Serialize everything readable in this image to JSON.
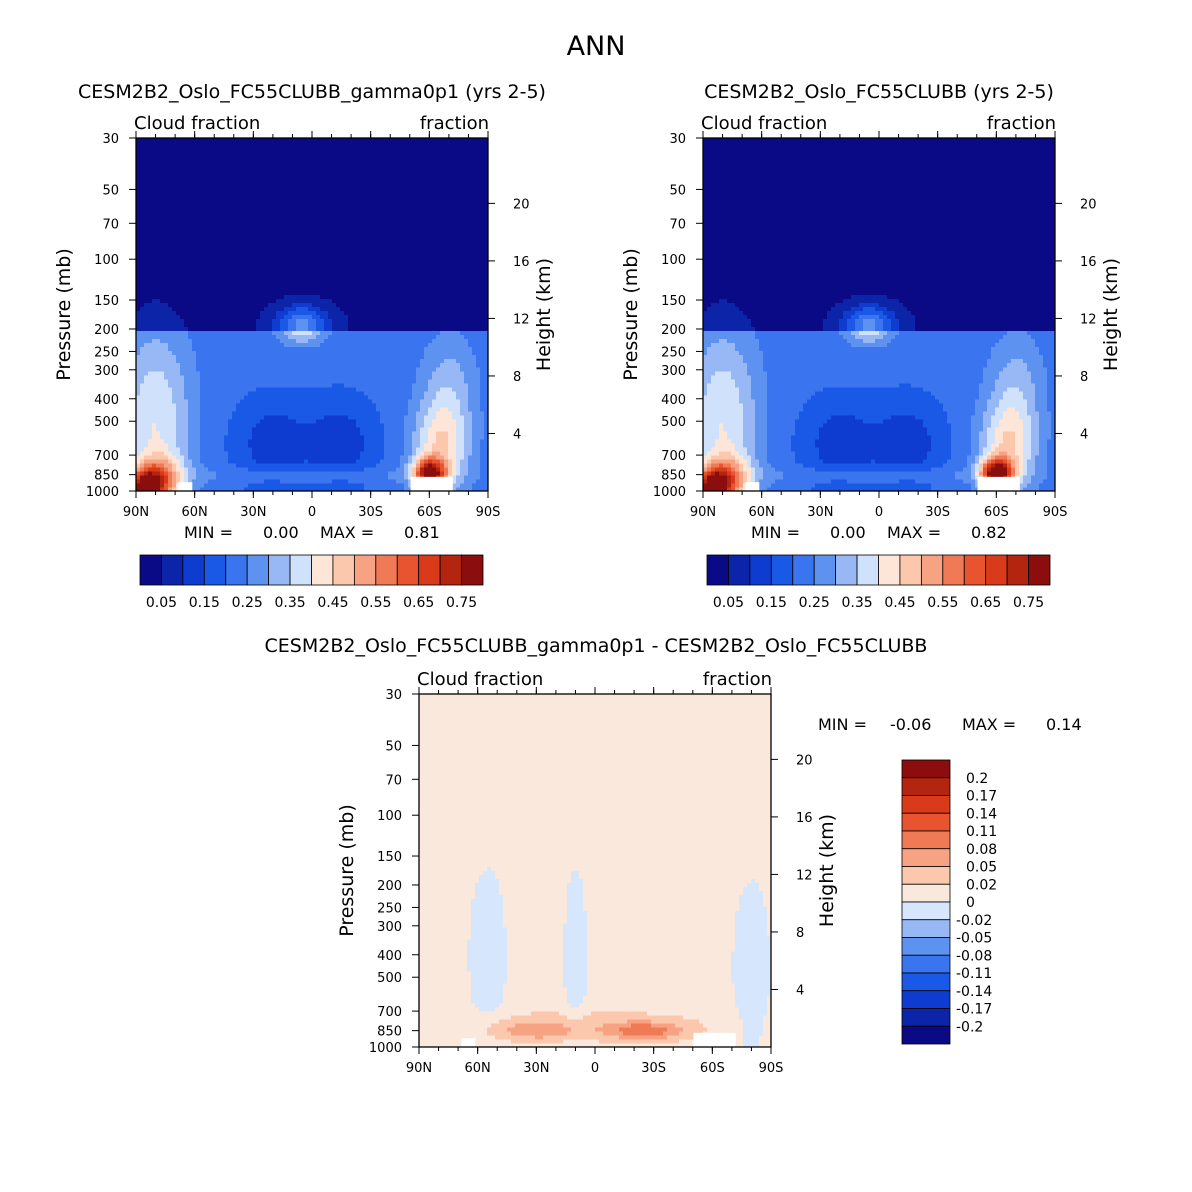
{
  "page_title": "ANN",
  "colors": {
    "main_scale": [
      "#0a0a87",
      "#0b24a8",
      "#0f3cd0",
      "#1a58e6",
      "#3a74ee",
      "#5e92f0",
      "#98b8f5",
      "#d0e2fb",
      "#fde6d8",
      "#fbc8ae",
      "#f7a383",
      "#f17a56",
      "#e85330",
      "#d83a1a",
      "#b42510",
      "#8b0d0d"
    ],
    "diff_scale": [
      "#0a0a87",
      "#0b24a8",
      "#0f3cd0",
      "#1a58e6",
      "#3a74ee",
      "#5e92f0",
      "#98b8f5",
      "#d6e6fc",
      "#fbe8dc",
      "#fbc8ae",
      "#f7a383",
      "#f17a56",
      "#e85330",
      "#d83a1a",
      "#b42510",
      "#8b0d0d"
    ]
  },
  "chart_data": [
    {
      "type": "heatmap",
      "title": "CESM2B2_Oslo_FC55CLUBB_gamma0p1 (yrs 2-5)",
      "left_label": "Cloud fraction",
      "right_label": "fraction",
      "ylabel": "Pressure (mb)",
      "y2label": "Height (km)",
      "x_ticks": [
        "90N",
        "60N",
        "30N",
        "0",
        "30S",
        "60S",
        "90S"
      ],
      "y_ticks": [
        "30",
        "50",
        "70",
        "100",
        "150",
        "200",
        "250",
        "300",
        "400",
        "500",
        "700",
        "850",
        "1000"
      ],
      "y2_ticks": [
        "20",
        "16",
        "12",
        "8",
        "4"
      ],
      "min_label": "MIN =",
      "min_value": "0.00",
      "max_label": "MAX =",
      "max_value": "0.81",
      "colorbar_labels": [
        "0.05",
        "0.15",
        "0.25",
        "0.35",
        "0.45",
        "0.55",
        "0.65",
        "0.75"
      ],
      "levels": [
        0.05,
        0.1,
        0.15,
        0.2,
        0.25,
        0.3,
        0.35,
        0.4,
        0.45,
        0.5,
        0.55,
        0.6,
        0.65,
        0.7,
        0.75
      ]
    },
    {
      "type": "heatmap",
      "title": "CESM2B2_Oslo_FC55CLUBB (yrs 2-5)",
      "left_label": "Cloud fraction",
      "right_label": "fraction",
      "ylabel": "Pressure (mb)",
      "y2label": "Height (km)",
      "x_ticks": [
        "90N",
        "60N",
        "30N",
        "0",
        "30S",
        "60S",
        "90S"
      ],
      "y_ticks": [
        "30",
        "50",
        "70",
        "100",
        "150",
        "200",
        "250",
        "300",
        "400",
        "500",
        "700",
        "850",
        "1000"
      ],
      "y2_ticks": [
        "20",
        "16",
        "12",
        "8",
        "4"
      ],
      "min_label": "MIN =",
      "min_value": "0.00",
      "max_label": "MAX =",
      "max_value": "0.82",
      "colorbar_labels": [
        "0.05",
        "0.15",
        "0.25",
        "0.35",
        "0.45",
        "0.55",
        "0.65",
        "0.75"
      ],
      "levels": [
        0.05,
        0.1,
        0.15,
        0.2,
        0.25,
        0.3,
        0.35,
        0.4,
        0.45,
        0.5,
        0.55,
        0.6,
        0.65,
        0.7,
        0.75
      ]
    },
    {
      "type": "heatmap",
      "title": "CESM2B2_Oslo_FC55CLUBB_gamma0p1 - CESM2B2_Oslo_FC55CLUBB",
      "left_label": "Cloud fraction",
      "right_label": "fraction",
      "ylabel": "Pressure (mb)",
      "y2label": "Height (km)",
      "x_ticks": [
        "90N",
        "60N",
        "30N",
        "0",
        "30S",
        "60S",
        "90S"
      ],
      "y_ticks": [
        "30",
        "50",
        "70",
        "100",
        "150",
        "200",
        "250",
        "300",
        "400",
        "500",
        "700",
        "850",
        "1000"
      ],
      "y2_ticks": [
        "20",
        "16",
        "12",
        "8",
        "4"
      ],
      "min_label": "MIN =",
      "min_value": "-0.06",
      "max_label": "MAX =",
      "max_value": "0.14",
      "colorbar_labels": [
        "0.2",
        "0.17",
        "0.14",
        "0.11",
        "0.08",
        "0.05",
        "0.02",
        "0",
        "-0.02",
        "-0.05",
        "-0.08",
        "-0.11",
        "-0.14",
        "-0.17",
        "-0.2"
      ],
      "levels": [
        -0.2,
        -0.17,
        -0.14,
        -0.11,
        -0.08,
        -0.05,
        -0.02,
        0,
        0.02,
        0.05,
        0.08,
        0.11,
        0.14,
        0.17,
        0.2
      ]
    }
  ]
}
